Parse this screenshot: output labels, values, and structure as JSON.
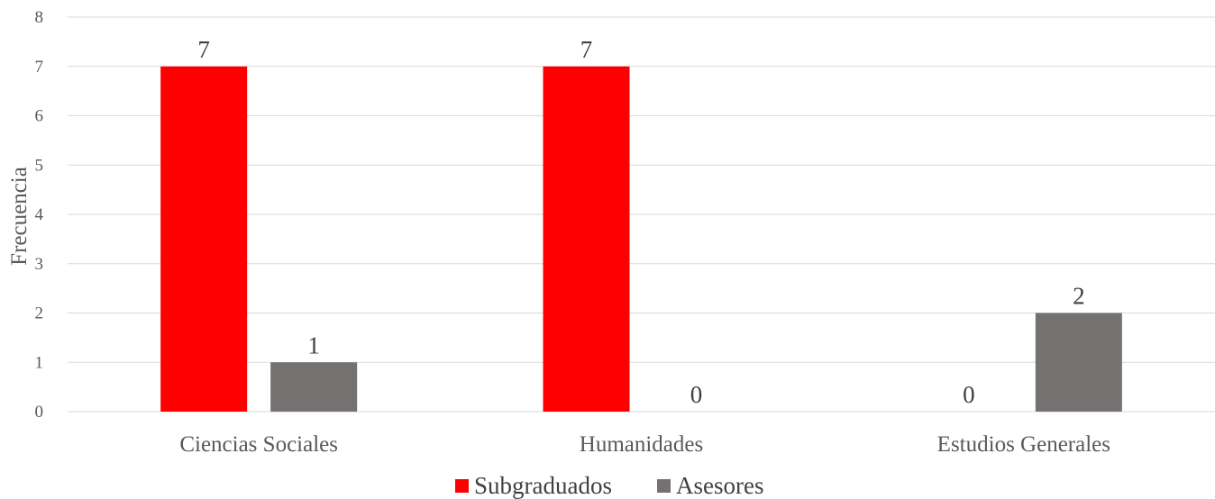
{
  "chart_data": {
    "type": "bar",
    "title": "",
    "xlabel": "",
    "ylabel": "Frecuencia",
    "ylim": [
      0,
      8
    ],
    "yticks": [
      0,
      1,
      2,
      3,
      4,
      5,
      6,
      7,
      8
    ],
    "grid": true,
    "legend_position": "bottom",
    "categories": [
      "Ciencias Sociales",
      "Humanidades",
      "Estudios Generales"
    ],
    "series": [
      {
        "name": "Subgraduados",
        "color": "#ff0000",
        "values": [
          7,
          7,
          0
        ]
      },
      {
        "name": "Asesores",
        "color": "#767171",
        "values": [
          1,
          0,
          2
        ]
      }
    ]
  }
}
